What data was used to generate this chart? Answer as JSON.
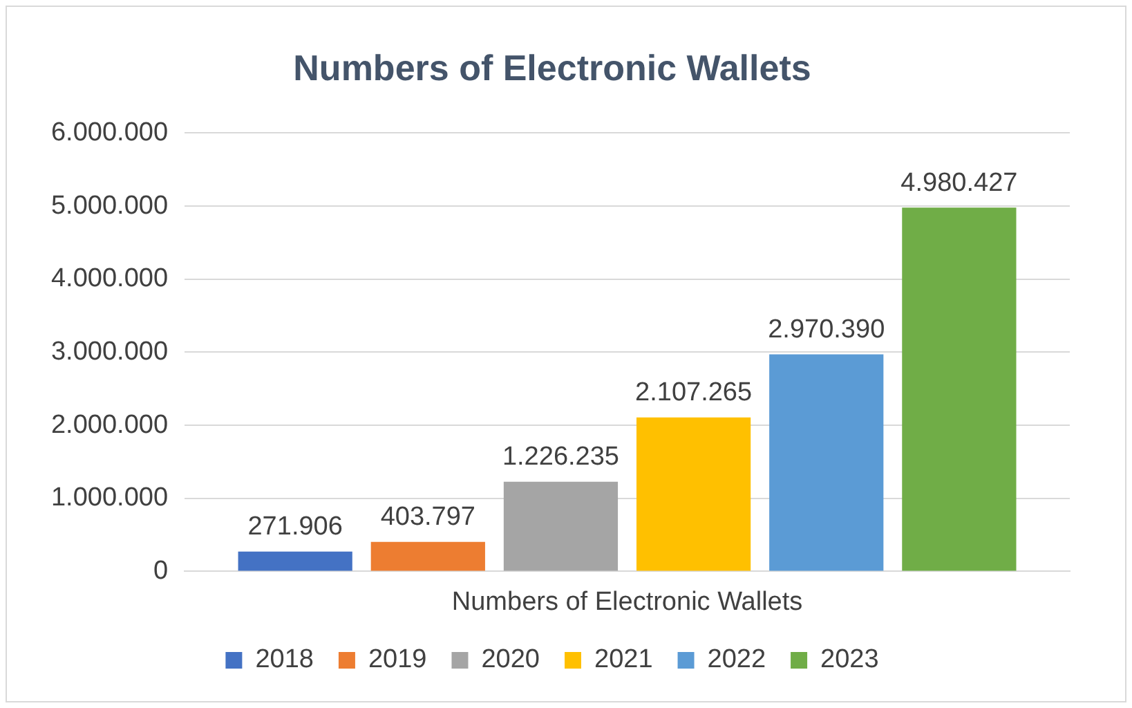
{
  "chart_data": {
    "type": "bar",
    "title": "Numbers of Electronic Wallets",
    "categories": [
      "Numbers of Electronic Wallets"
    ],
    "series": [
      {
        "name": "2018",
        "color": "#4472c4",
        "values": [
          271906
        ],
        "value_labels": [
          "271.906"
        ]
      },
      {
        "name": "2019",
        "color": "#ed7d31",
        "values": [
          403797
        ],
        "value_labels": [
          "403.797"
        ]
      },
      {
        "name": "2020",
        "color": "#a5a5a5",
        "values": [
          1226235
        ],
        "value_labels": [
          "1.226.235"
        ]
      },
      {
        "name": "2021",
        "color": "#ffc000",
        "values": [
          2107265
        ],
        "value_labels": [
          "2.107.265"
        ]
      },
      {
        "name": "2022",
        "color": "#5b9bd5",
        "values": [
          2970390
        ],
        "value_labels": [
          "2.970.390"
        ]
      },
      {
        "name": "2023",
        "color": "#70ad47",
        "values": [
          4980427
        ],
        "value_labels": [
          "4.980.427"
        ]
      }
    ],
    "ylim": [
      0,
      6000000
    ],
    "yticks": [
      0,
      {
        "value": 1000000,
        "label": "1.000.000"
      },
      {
        "value": 2000000,
        "label": "2.000.000"
      },
      {
        "value": 3000000,
        "label": "3.000.000"
      },
      {
        "value": 4000000,
        "label": "4.000.000"
      },
      {
        "value": 5000000,
        "label": "5.000.000"
      },
      {
        "value": 6000000,
        "label": "6.000.000"
      }
    ],
    "grid": "y",
    "legend": "bottom"
  }
}
